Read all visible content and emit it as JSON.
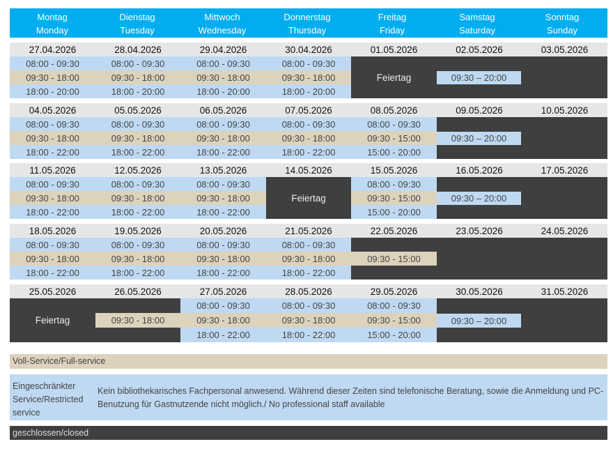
{
  "header": [
    {
      "de": "Montag",
      "en": "Monday"
    },
    {
      "de": "Dienstag",
      "en": "Tuesday"
    },
    {
      "de": "Mittwoch",
      "en": "Wednesday"
    },
    {
      "de": "Donnerstag",
      "en": "Thursday"
    },
    {
      "de": "Freitag",
      "en": "Friday"
    },
    {
      "de": "Samstag",
      "en": "Saturday"
    },
    {
      "de": "Sonntag",
      "en": "Sunday"
    }
  ],
  "colors": {
    "header": "#00aeef",
    "restricted": "#bfd9f2",
    "full": "#ddd2bc",
    "closed": "#3f3f3f",
    "date": "#e6e6e6"
  },
  "weeks": [
    {
      "dates": [
        "27.04.2026",
        "28.04.2026",
        "29.04.2026",
        "30.04.2026",
        "01.05.2026",
        "02.05.2026",
        "03.05.2026"
      ],
      "days": [
        {
          "early": "08:00 - 09:30",
          "mid": "09:30 - 18:00",
          "late": "18:00 - 20:00"
        },
        {
          "early": "08:00 - 09:30",
          "mid": "09:30 - 18:00",
          "late": "18:00 - 20:00"
        },
        {
          "early": "08:00 - 09:30",
          "mid": "09:30 - 18:00",
          "late": "18:00 - 20:00"
        },
        {
          "early": "08:00 - 09:30",
          "mid": "09:30 - 18:00",
          "late": "18:00 - 20:00"
        },
        {
          "closed": "Feiertag"
        },
        {
          "sat": "09:30 – 20:00"
        },
        {
          "closed": ""
        }
      ]
    },
    {
      "dates": [
        "04.05.2026",
        "05.05.2026",
        "06.05.2026",
        "07.05.2026",
        "08.05.2026",
        "09.05.2026",
        "10.05.2026"
      ],
      "days": [
        {
          "early": "08:00 - 09:30",
          "mid": "09:30 - 18:00",
          "late": "18:00 - 22:00"
        },
        {
          "early": "08:00 - 09:30",
          "mid": "09:30 - 18:00",
          "late": "18:00 - 22:00"
        },
        {
          "early": "08:00 - 09:30",
          "mid": "09:30 - 18:00",
          "late": "18:00 - 22:00"
        },
        {
          "early": "08:00 - 09:30",
          "mid": "09:30 - 18:00",
          "late": "18:00 - 22:00"
        },
        {
          "early": "08:00 - 09:30",
          "mid": "09:30 - 15:00",
          "late": "15:00 - 20:00"
        },
        {
          "sat": "09:30 – 20:00"
        },
        {
          "closed": ""
        }
      ]
    },
    {
      "dates": [
        "11.05.2026",
        "12.05.2026",
        "13.05.2026",
        "14.05.2026",
        "15.05.2026",
        "16.05.2026",
        "17.05.2026"
      ],
      "days": [
        {
          "early": "08:00 - 09:30",
          "mid": "09:30 - 18:00",
          "late": "18:00 - 22:00"
        },
        {
          "early": "08:00 - 09:30",
          "mid": "09:30 - 18:00",
          "late": "18:00 - 22:00"
        },
        {
          "early": "08:00 - 09:30",
          "mid": "09:30 - 18:00",
          "late": "18:00 - 22:00"
        },
        {
          "closed": "Feiertag"
        },
        {
          "early": "08:00 - 09:30",
          "mid": "09:30 - 15:00",
          "late": "15:00 - 20:00"
        },
        {
          "sat": "09:30 – 20:00"
        },
        {
          "closed": ""
        }
      ]
    },
    {
      "dates": [
        "18.05.2026",
        "19.05.2026",
        "20.05.2026",
        "21.05.2026",
        "22.05.2026",
        "23.05.2026",
        "24.05.2026"
      ],
      "days": [
        {
          "early": "08:00 - 09:30",
          "mid": "09:30 - 18:00",
          "late": "18:00 - 22:00"
        },
        {
          "early": "08:00 - 09:30",
          "mid": "09:30 - 18:00",
          "late": "18:00 - 22:00"
        },
        {
          "early": "08:00 - 09:30",
          "mid": "09:30 - 18:00",
          "late": "18:00 - 22:00"
        },
        {
          "early": "08:00 - 09:30",
          "mid": "09:30 - 18:00",
          "late": "18:00 - 22:00"
        },
        {
          "midonly": "09:30 - 15:00"
        },
        {
          "closed": ""
        },
        {
          "closed": ""
        }
      ]
    },
    {
      "dates": [
        "25.05.2026",
        "26.05.2026",
        "27.05.2026",
        "28.05.2026",
        "29.05.2026",
        "30.05.2026",
        "31.05.2026"
      ],
      "days": [
        {
          "closed": "Feiertag"
        },
        {
          "midonly": "09:30 - 18:00"
        },
        {
          "early": "08:00 - 09:30",
          "mid": "09:30 - 18:00",
          "late": "18:00 - 22:00"
        },
        {
          "early": "08:00 - 09:30",
          "mid": "09:30 - 18:00",
          "late": "18:00 - 22:00"
        },
        {
          "early": "08:00 - 09:30",
          "mid": "09:30 - 15:00",
          "late": "15:00 - 20:00"
        },
        {
          "sat": "09:30 – 20:00"
        },
        {
          "closed": ""
        }
      ]
    }
  ],
  "legend": {
    "full": "Voll-Service/Full-service",
    "restricted_title": "Eingeschränkter Service/Restricted service",
    "restricted_desc": "Kein bibliothekarisches Fachpersonal anwesend. Während dieser Zeiten sind telefonische Beratung, sowie die Anmeldung und PC-Benutzung für Gastnutzende nicht möglich./ No professional staff available",
    "closed": "geschlossen/closed"
  }
}
